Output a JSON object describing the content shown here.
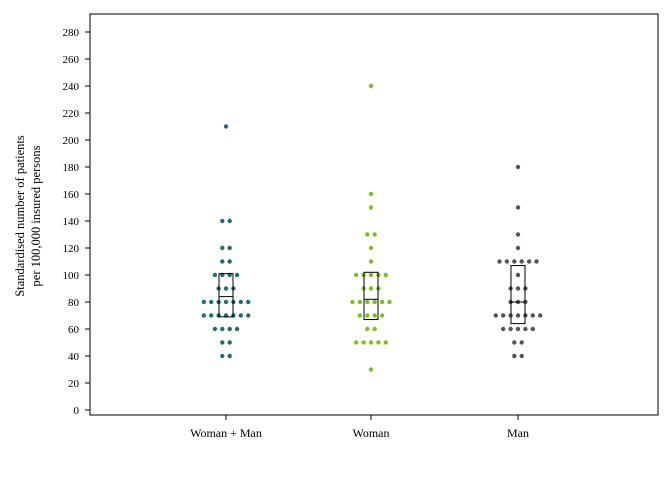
{
  "chart_data": {
    "type": "scatter",
    "subtype": "dot-strip-with-box",
    "title": "",
    "xlabel": "",
    "ylabel_lines": [
      "Standardised number of patients",
      "per 100,000 insured persons"
    ],
    "ylim": [
      0,
      290
    ],
    "yticks": [
      0,
      20,
      40,
      60,
      80,
      100,
      120,
      140,
      160,
      180,
      200,
      220,
      240,
      260,
      280
    ],
    "grid": false,
    "categories": [
      "Woman + Man",
      "Woman",
      "Man"
    ],
    "series": [
      {
        "category": "Woman + Man",
        "color": "#1f6e74",
        "box": {
          "q1": 69,
          "median": 84,
          "q3": 101
        },
        "values": [
          210,
          140,
          140,
          120,
          120,
          110,
          110,
          100,
          100,
          100,
          100,
          90,
          90,
          90,
          80,
          80,
          80,
          80,
          80,
          80,
          80,
          70,
          70,
          70,
          70,
          70,
          70,
          70,
          60,
          60,
          60,
          60,
          50,
          50,
          40,
          40
        ]
      },
      {
        "category": "Woman",
        "color": "#7abf24",
        "box": {
          "q1": 67,
          "median": 82,
          "q3": 102
        },
        "values": [
          240,
          160,
          150,
          130,
          130,
          120,
          110,
          100,
          100,
          100,
          100,
          100,
          90,
          90,
          90,
          80,
          80,
          80,
          80,
          80,
          80,
          70,
          70,
          70,
          70,
          60,
          60,
          50,
          50,
          50,
          50,
          50,
          30
        ]
      },
      {
        "category": "Man",
        "color": "#555555",
        "box": {
          "q1": 64,
          "median": 80,
          "q3": 107
        },
        "values": [
          180,
          150,
          130,
          120,
          110,
          110,
          110,
          110,
          110,
          110,
          100,
          90,
          90,
          90,
          80,
          80,
          80,
          70,
          70,
          70,
          70,
          70,
          70,
          70,
          60,
          60,
          60,
          60,
          60,
          50,
          50,
          40,
          40
        ]
      }
    ]
  }
}
